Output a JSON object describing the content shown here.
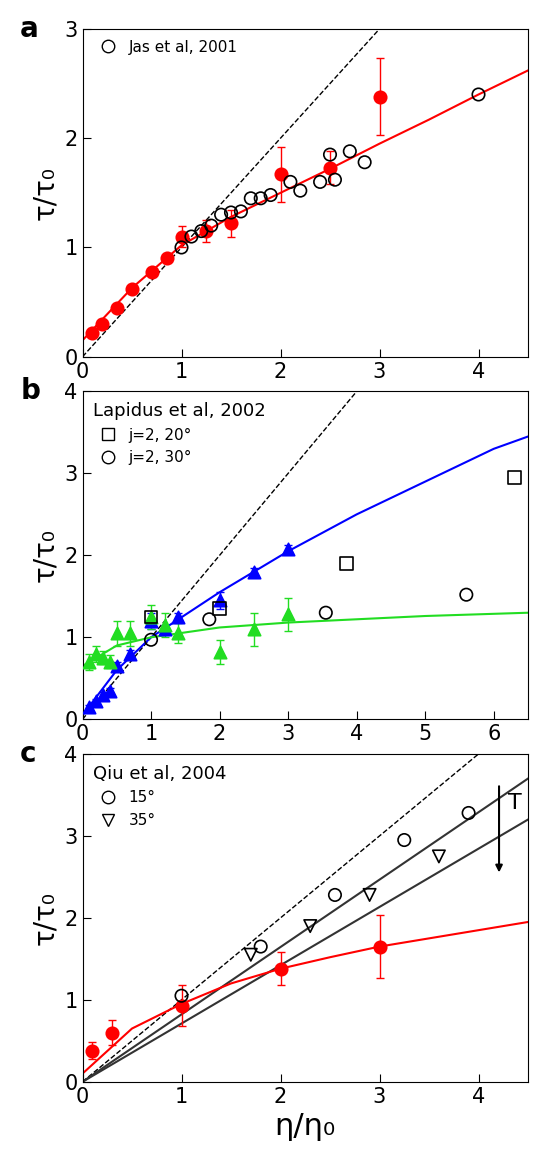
{
  "chart_data": [
    {
      "type": "scatter",
      "panel": "a",
      "ylabel": "τ/τ₀",
      "xlim": [
        0,
        4.5
      ],
      "xticks": [
        0,
        1,
        2,
        3,
        4
      ],
      "ylim": [
        0,
        3
      ],
      "yticks": [
        0,
        1,
        2,
        3
      ],
      "legend": "upper left",
      "series": [
        {
          "type": "line",
          "color": "#000000",
          "line_style": "dashed",
          "x": [
            0,
            3
          ],
          "values": [
            0,
            3
          ]
        },
        {
          "type": "line",
          "color": "#ff0000",
          "line_style": "solid",
          "x": [
            0,
            0.5,
            1,
            1.5,
            2,
            2.5,
            3,
            3.5,
            4,
            4.5
          ],
          "values": [
            0.15,
            0.63,
            1.02,
            1.28,
            1.5,
            1.72,
            1.95,
            2.17,
            2.4,
            2.62
          ]
        },
        {
          "type": "scatter",
          "color": "#ff0000",
          "marker": "circle",
          "x": [
            0.1,
            0.2,
            0.35,
            0.5,
            0.7,
            0.85,
            1.0,
            1.25,
            1.5,
            2.0,
            2.5,
            3.0
          ],
          "values": [
            0.22,
            0.3,
            0.45,
            0.62,
            0.78,
            0.9,
            1.1,
            1.15,
            1.22,
            1.67,
            1.73,
            2.38
          ],
          "errors": [
            0.03,
            0.03,
            0.03,
            0.03,
            0.03,
            0.03,
            0.1,
            0.1,
            0.12,
            0.25,
            0.15,
            0.35
          ]
        },
        {
          "type": "scatter",
          "name": "Jas et al, 2001",
          "color": "#000000",
          "marker": "open_circle",
          "x": [
            1.0,
            1.1,
            1.2,
            1.3,
            1.4,
            1.5,
            1.6,
            1.7,
            1.8,
            1.9,
            2.1,
            2.2,
            2.4,
            2.5,
            2.55,
            2.7,
            2.85,
            4.0
          ],
          "values": [
            1.0,
            1.1,
            1.15,
            1.2,
            1.3,
            1.32,
            1.33,
            1.45,
            1.45,
            1.48,
            1.6,
            1.52,
            1.6,
            1.85,
            1.62,
            1.88,
            1.78,
            2.4
          ]
        }
      ]
    },
    {
      "type": "scatter",
      "panel": "b",
      "ylabel": "τ/τ₀",
      "xlim": [
        0,
        6.5
      ],
      "xticks": [
        0,
        1,
        2,
        3,
        4,
        5,
        6
      ],
      "ylim": [
        0,
        4
      ],
      "yticks": [
        0,
        1,
        2,
        3,
        4
      ],
      "legend": "upper left",
      "legend_title": "Lapidus et al, 2002",
      "series": [
        {
          "type": "line",
          "color": "#000000",
          "line_style": "dashed",
          "x": [
            0,
            4
          ],
          "values": [
            0,
            4
          ]
        },
        {
          "type": "line",
          "color": "#0000ff",
          "line_style": "solid",
          "x": [
            0,
            0.5,
            1,
            2,
            3,
            4,
            5,
            6,
            6.5
          ],
          "values": [
            0.05,
            0.6,
            1.0,
            1.55,
            2.05,
            2.5,
            2.9,
            3.3,
            3.45
          ]
        },
        {
          "type": "line",
          "color": "#22dd22",
          "line_style": "solid",
          "x": [
            0,
            0.5,
            1,
            2,
            3,
            4,
            5,
            6.5
          ],
          "values": [
            0.65,
            0.9,
            1.0,
            1.12,
            1.18,
            1.22,
            1.26,
            1.3
          ]
        },
        {
          "type": "scatter",
          "color": "#0000ff",
          "marker": "triangle_up",
          "x": [
            0.1,
            0.2,
            0.3,
            0.4,
            0.5,
            0.7,
            1.0,
            1.2,
            1.4,
            2.0,
            2.5,
            3.0
          ],
          "values": [
            0.15,
            0.22,
            0.3,
            0.35,
            0.65,
            0.8,
            1.2,
            1.1,
            1.25,
            1.45,
            1.8,
            2.08
          ],
          "errors": [
            0.03,
            0.03,
            0.03,
            0.03,
            0.05,
            0.05,
            0.1,
            0.05,
            0.05,
            0.1,
            0.05,
            0.05
          ]
        },
        {
          "type": "scatter",
          "color": "#22dd22",
          "marker": "triangle_up",
          "x": [
            0.1,
            0.2,
            0.3,
            0.4,
            0.5,
            0.7,
            1.0,
            1.2,
            1.4,
            2.0,
            2.5,
            3.0
          ],
          "values": [
            0.7,
            0.8,
            0.75,
            0.7,
            1.05,
            1.05,
            1.25,
            1.15,
            1.05,
            0.82,
            1.1,
            1.28
          ],
          "errors": [
            0.1,
            0.1,
            0.08,
            0.08,
            0.15,
            0.15,
            0.15,
            0.15,
            0.12,
            0.15,
            0.2,
            0.2
          ]
        },
        {
          "type": "scatter",
          "name": "j=2, 20°",
          "color": "#000000",
          "marker": "open_square",
          "x": [
            1.0,
            2.0,
            3.85,
            6.3
          ],
          "values": [
            1.25,
            1.35,
            1.9,
            2.95
          ]
        },
        {
          "type": "scatter",
          "name": "j=2, 30°",
          "color": "#000000",
          "marker": "open_circle",
          "x": [
            1.0,
            1.85,
            3.55,
            5.6
          ],
          "values": [
            0.97,
            1.22,
            1.3,
            1.52
          ]
        }
      ]
    },
    {
      "type": "scatter",
      "panel": "c",
      "xlabel": "η/η₀",
      "ylabel": "τ/τ₀",
      "xlim": [
        0,
        4.5
      ],
      "xticks": [
        0,
        1,
        2,
        3,
        4
      ],
      "ylim": [
        0,
        4
      ],
      "yticks": [
        0,
        1,
        2,
        3,
        4
      ],
      "legend": "upper left",
      "legend_title": "Qiu et al, 2004",
      "annotation": "T",
      "series": [
        {
          "type": "line",
          "color": "#000000",
          "line_style": "dashed",
          "x": [
            0,
            4
          ],
          "values": [
            0,
            4
          ]
        },
        {
          "type": "line",
          "color": "#333333",
          "line_style": "solid",
          "x": [
            0,
            4.5
          ],
          "values": [
            0,
            3.7
          ]
        },
        {
          "type": "line",
          "color": "#333333",
          "line_style": "solid",
          "x": [
            0,
            4.5
          ],
          "values": [
            0,
            3.2
          ]
        },
        {
          "type": "line",
          "color": "#ff0000",
          "line_style": "solid",
          "x": [
            0,
            0.5,
            1,
            1.5,
            2,
            2.5,
            3,
            3.5,
            4,
            4.5
          ],
          "values": [
            0.1,
            0.65,
            0.95,
            1.2,
            1.38,
            1.52,
            1.65,
            1.75,
            1.85,
            1.95
          ]
        },
        {
          "type": "scatter",
          "color": "#ff0000",
          "marker": "circle",
          "x": [
            0.1,
            0.3,
            1.0,
            2.0,
            3.0
          ],
          "values": [
            0.38,
            0.6,
            0.93,
            1.38,
            1.65
          ],
          "errors": [
            0.1,
            0.15,
            0.25,
            0.2,
            0.38
          ]
        },
        {
          "type": "scatter",
          "name": "15°",
          "color": "#000000",
          "marker": "open_circle",
          "x": [
            1.0,
            1.8,
            2.55,
            3.25,
            3.9
          ],
          "values": [
            1.05,
            1.65,
            2.28,
            2.95,
            3.28
          ]
        },
        {
          "type": "scatter",
          "name": "35°",
          "color": "#000000",
          "marker": "open_triangle_down",
          "x": [
            1.7,
            2.3,
            2.9,
            3.6
          ],
          "values": [
            1.55,
            1.9,
            2.28,
            2.75
          ]
        }
      ]
    }
  ]
}
